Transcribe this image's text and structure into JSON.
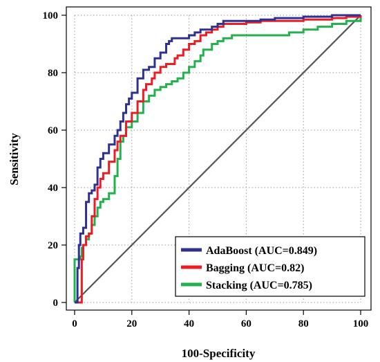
{
  "chart_data": {
    "type": "line",
    "xlabel": "100-Specificity",
    "ylabel": "Sensitivity",
    "xlim": [
      0,
      100
    ],
    "ylim": [
      0,
      100
    ],
    "xticks": [
      0,
      20,
      40,
      60,
      80,
      100
    ],
    "yticks": [
      0,
      20,
      40,
      60,
      80,
      100
    ],
    "grid": true,
    "legend_position": "bottom-right",
    "reference_line": {
      "x": [
        0,
        100
      ],
      "y": [
        0,
        100
      ],
      "color": "#555555"
    },
    "series": [
      {
        "name": "AdaBoost (AUC=0.849)",
        "color": "#2e3192",
        "x": [
          0,
          1,
          1.5,
          2,
          3,
          4,
          5,
          6,
          7,
          8,
          9,
          10,
          12,
          14,
          15,
          16,
          17,
          18,
          19,
          20,
          22,
          24,
          25,
          26,
          28,
          30,
          32,
          33,
          34,
          36,
          38,
          40,
          42,
          44,
          46,
          48,
          50,
          52,
          55,
          60,
          65,
          70,
          80,
          90,
          100
        ],
        "y": [
          0,
          12,
          20,
          24,
          26,
          35,
          38,
          39,
          41,
          47,
          50,
          52,
          55,
          58,
          60,
          63,
          66,
          69,
          71,
          73,
          78,
          81,
          81,
          82,
          85,
          87,
          90,
          91,
          92,
          92,
          92,
          93,
          94,
          95,
          95,
          96,
          97,
          98,
          98,
          98,
          98.5,
          99,
          99.5,
          100,
          100
        ]
      },
      {
        "name": "Bagging (AUC=0.82)",
        "color": "#ed1c24",
        "x": [
          0,
          1,
          2,
          2.5,
          3,
          4,
          5,
          6,
          7,
          8,
          9,
          10,
          12,
          14,
          15,
          16,
          18,
          20,
          22,
          24,
          25,
          27,
          28,
          30,
          32,
          34,
          35,
          36,
          38,
          40,
          42,
          44,
          46,
          48,
          50,
          52,
          55,
          60,
          65,
          70,
          80,
          90,
          95,
          100
        ],
        "y": [
          0,
          0,
          0,
          15,
          20,
          23,
          24,
          30,
          36,
          40,
          43,
          45,
          49,
          53,
          56,
          58,
          63,
          66,
          70,
          74,
          76,
          78,
          80,
          82,
          83,
          83,
          85,
          86,
          88,
          90,
          91,
          93,
          94,
          95,
          96,
          97,
          97,
          97.5,
          98,
          98,
          98.5,
          99,
          99.5,
          100
        ]
      },
      {
        "name": "Stacking (AUC=0.785)",
        "color": "#22b24c",
        "x": [
          0,
          0,
          2,
          2.5,
          3,
          4,
          5,
          6,
          7,
          8,
          9,
          10,
          12,
          14,
          15,
          16,
          17,
          18,
          20,
          22,
          24,
          26,
          28,
          30,
          32,
          34,
          36,
          38,
          40,
          42,
          44,
          45,
          48,
          50,
          52,
          55,
          60,
          65,
          70,
          75,
          80,
          85,
          90,
          95,
          100
        ],
        "y": [
          0,
          15,
          16,
          19,
          20,
          22,
          24,
          27,
          30,
          33,
          35,
          36,
          38,
          44,
          50,
          56,
          58,
          61,
          63,
          66,
          70,
          72,
          74,
          75,
          76,
          77,
          78,
          80,
          82,
          84,
          86,
          88,
          90,
          91,
          92,
          93,
          93,
          93,
          93,
          94,
          95,
          96,
          97,
          98,
          100
        ]
      }
    ]
  }
}
